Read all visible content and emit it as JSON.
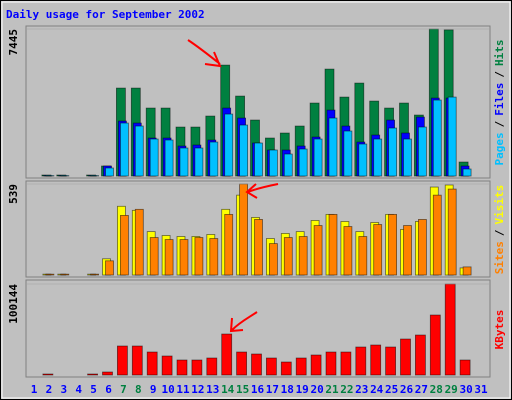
{
  "title": "Daily usage for September 2002",
  "separator": "/",
  "chart_data": [
    {
      "type": "bar",
      "ylim": [
        0,
        7445
      ],
      "yticks": [
        7445
      ],
      "series": [
        {
          "name": "Hits",
          "color": "#008040",
          "values": [
            0,
            50,
            50,
            0,
            50,
            506,
            4453,
            4453,
            3441,
            3441,
            2479,
            2479,
            3036,
            5617,
            4048,
            2834,
            1923,
            2176,
            2530,
            3694,
            5414,
            3997,
            4706,
            3795,
            3441,
            3694,
            3087,
            7445,
            7400,
            708,
            0
          ]
        },
        {
          "name": "Files",
          "color": "#0000ff",
          "values": [
            0,
            20,
            20,
            0,
            20,
            506,
            2783,
            2682,
            1923,
            1923,
            1518,
            1569,
            1822,
            3441,
            2935,
            1670,
            1316,
            1316,
            1518,
            1973,
            3340,
            2530,
            1720,
            2075,
            2834,
            2176,
            2985,
            3947,
            3947,
            506,
            0
          ]
        },
        {
          "name": "Pages",
          "color": "#00c0ff",
          "values": [
            0,
            20,
            20,
            0,
            20,
            405,
            2682,
            2530,
            1872,
            1822,
            1417,
            1417,
            1720,
            3137,
            2581,
            1670,
            1316,
            1113,
            1366,
            1872,
            2935,
            2277,
            1619,
            1872,
            2429,
            1872,
            2480,
            3846,
            3997,
            354,
            0
          ]
        }
      ]
    },
    {
      "type": "bar",
      "ylim": [
        0,
        539
      ],
      "yticks": [
        539
      ],
      "series": [
        {
          "name": "Visits",
          "color": "#ffff00",
          "values": [
            0,
            5,
            5,
            0,
            5,
            96,
            407,
            383,
            257,
            234,
            228,
            228,
            240,
            389,
            473,
            341,
            216,
            246,
            257,
            323,
            359,
            317,
            257,
            311,
            359,
            270,
            317,
            521,
            533,
            42,
            0
          ]
        },
        {
          "name": "Sites",
          "color": "#ff8000",
          "values": [
            0,
            5,
            5,
            0,
            5,
            84,
            353,
            389,
            222,
            210,
            210,
            222,
            216,
            359,
            539,
            329,
            186,
            222,
            228,
            293,
            359,
            287,
            228,
            299,
            359,
            293,
            329,
            473,
            509,
            48,
            0
          ]
        }
      ]
    },
    {
      "type": "bar",
      "ylim": [
        0,
        100144
      ],
      "yticks": [
        100144
      ],
      "categories": [
        "1",
        "2",
        "3",
        "4",
        "5",
        "6",
        "7",
        "8",
        "9",
        "10",
        "11",
        "12",
        "13",
        "14",
        "15",
        "16",
        "17",
        "18",
        "19",
        "20",
        "21",
        "22",
        "23",
        "24",
        "25",
        "26",
        "27",
        "28",
        "29",
        "30",
        "31"
      ],
      "label_color": "#0000ff",
      "weekend_color": "#008040",
      "weekends": [
        "7",
        "8",
        "14",
        "15",
        "21",
        "22",
        "28",
        "29"
      ],
      "series": [
        {
          "name": "KBytes",
          "color": "#ff0000",
          "values": [
            0,
            1100,
            0,
            0,
            1100,
            3300,
            31900,
            31900,
            25300,
            20900,
            16500,
            16500,
            18700,
            45100,
            25300,
            23100,
            18700,
            14300,
            18700,
            22000,
            25300,
            25300,
            30800,
            33000,
            30800,
            39600,
            44000,
            66000,
            100144,
            16500,
            0
          ]
        }
      ]
    }
  ]
}
